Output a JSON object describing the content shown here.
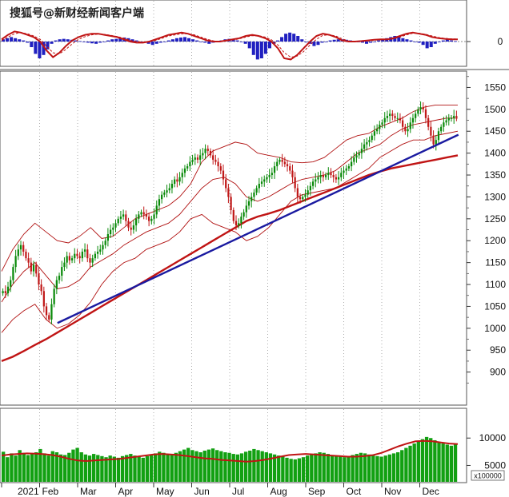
{
  "watermark": "搜狐号@新财经新闻客户端",
  "colors": {
    "up": "#0a8a0a",
    "down": "#c01818",
    "band": "#b01010",
    "ma": "#c01414",
    "trendline": "#1a1aa0",
    "macd_pos": "#2020c0",
    "macd_neg": "#2020c0",
    "volume": "#12a012",
    "volume_ma": "#c01414",
    "grid": "#888888"
  },
  "chart_data": [
    {
      "type": "histogram",
      "panel": "indicator",
      "ylim": [
        -1,
        1
      ],
      "ticks": [
        "0"
      ],
      "series": [
        {
          "values": [
            0.1,
            0.15,
            0.2,
            0.15,
            0.1,
            0.05,
            -0.05,
            -0.25,
            -0.55,
            -0.75,
            -0.6,
            -0.35,
            -0.1,
            0.05,
            0.1,
            0.12,
            0.1,
            0.08,
            0.05,
            0.02,
            -0.02,
            -0.05,
            -0.08,
            -0.1,
            -0.05,
            0.0,
            0.05,
            0.1,
            0.12,
            0.15,
            0.18,
            0.15,
            0.1,
            0.05,
            0.0,
            -0.05,
            -0.1,
            -0.15,
            -0.1,
            -0.05,
            0.0,
            0.05,
            0.1,
            0.15,
            0.18,
            0.2,
            0.15,
            0.1,
            0.05,
            0.0,
            -0.05,
            -0.1,
            -0.05,
            0.0,
            0.05,
            0.1,
            0.12,
            0.1,
            0.05,
            0.0,
            -0.1,
            -0.3,
            -0.6,
            -0.8,
            -0.75,
            -0.55,
            -0.3,
            -0.1,
            0.05,
            0.2,
            0.35,
            0.4,
            0.35,
            0.25,
            0.1,
            0.0,
            -0.1,
            -0.2,
            -0.15,
            -0.05,
            0.0,
            0.05,
            0.08,
            0.1,
            0.1,
            0.08,
            0.05,
            0.02,
            0.0,
            -0.05,
            -0.1,
            -0.05,
            0.0,
            0.05,
            0.1,
            0.15,
            0.2,
            0.25,
            0.2,
            0.15,
            0.1,
            0.05,
            0.0,
            -0.05,
            -0.15,
            -0.3,
            -0.25,
            -0.1,
            0.0,
            0.05,
            0.1,
            0.05,
            0.02
          ]
        }
      ],
      "lines": [
        {
          "name": "",
          "values": [
            0.1,
            0.3,
            0.45,
            0.4,
            0.3,
            0.2,
            0.0,
            -0.4,
            -0.7,
            -0.5,
            -0.2,
            0.05,
            0.2,
            0.3,
            0.35,
            0.35,
            0.3,
            0.25,
            0.2,
            0.1,
            0.0,
            -0.05,
            -0.05,
            0.0,
            0.1,
            0.2,
            0.3,
            0.35,
            0.4,
            0.35,
            0.25,
            0.15,
            0.05,
            0.0,
            0.0,
            0.05,
            0.1,
            0.15,
            0.25,
            0.3,
            0.25,
            0.15,
            0.0,
            -0.3,
            -0.75,
            -0.8,
            -0.6,
            -0.3,
            0.0,
            0.25,
            0.35,
            0.3,
            0.2,
            0.05,
            0.0,
            0.0,
            0.02,
            0.05,
            0.08,
            0.1,
            0.1,
            0.15,
            0.25,
            0.35,
            0.4,
            0.35,
            0.3,
            0.2,
            0.15,
            0.12,
            0.1,
            0.1
          ]
        },
        {
          "name": "",
          "values": [
            0.05,
            0.2,
            0.35,
            0.4,
            0.35,
            0.25,
            0.1,
            -0.2,
            -0.5,
            -0.55,
            -0.35,
            -0.1,
            0.1,
            0.22,
            0.3,
            0.33,
            0.32,
            0.28,
            0.22,
            0.15,
            0.05,
            0.0,
            -0.02,
            0.0,
            0.05,
            0.15,
            0.25,
            0.3,
            0.35,
            0.35,
            0.3,
            0.2,
            0.1,
            0.03,
            0.0,
            0.02,
            0.07,
            0.12,
            0.2,
            0.26,
            0.26,
            0.2,
            0.08,
            -0.15,
            -0.5,
            -0.7,
            -0.65,
            -0.45,
            -0.15,
            0.1,
            0.28,
            0.3,
            0.25,
            0.12,
            0.03,
            0.0,
            0.01,
            0.03,
            0.06,
            0.08,
            0.09,
            0.12,
            0.2,
            0.3,
            0.37,
            0.37,
            0.32,
            0.25,
            0.18,
            0.14,
            0.12,
            0.11
          ]
        }
      ]
    },
    {
      "type": "candlestick",
      "panel": "price",
      "ylim": [
        830,
        1580
      ],
      "ticks": [
        900,
        950,
        1000,
        1050,
        1100,
        1150,
        1200,
        1250,
        1300,
        1350,
        1400,
        1450,
        1500,
        1550
      ],
      "x": [
        "2021",
        "Feb",
        "Mar",
        "Apr",
        "May",
        "Jun",
        "Jul",
        "Aug",
        "Sep",
        "Oct",
        "Nov",
        "Dec"
      ],
      "closes": [
        1085,
        1080,
        1095,
        1110,
        1140,
        1165,
        1180,
        1190,
        1175,
        1160,
        1150,
        1130,
        1145,
        1125,
        1100,
        1085,
        1050,
        1030,
        1020,
        1055,
        1090,
        1110,
        1120,
        1140,
        1150,
        1165,
        1155,
        1160,
        1170,
        1165,
        1160,
        1175,
        1180,
        1160,
        1150,
        1160,
        1170,
        1175,
        1180,
        1190,
        1200,
        1215,
        1225,
        1230,
        1240,
        1250,
        1255,
        1260,
        1245,
        1230,
        1225,
        1235,
        1250,
        1260,
        1265,
        1260,
        1255,
        1245,
        1250,
        1260,
        1280,
        1295,
        1305,
        1310,
        1315,
        1320,
        1330,
        1340,
        1335,
        1345,
        1355,
        1365,
        1370,
        1380,
        1385,
        1390,
        1385,
        1395,
        1400,
        1410,
        1405,
        1395,
        1385,
        1380,
        1370,
        1360,
        1340,
        1320,
        1300,
        1270,
        1245,
        1235,
        1240,
        1255,
        1265,
        1280,
        1290,
        1300,
        1310,
        1320,
        1330,
        1335,
        1340,
        1345,
        1350,
        1355,
        1370,
        1380,
        1385,
        1380,
        1375,
        1370,
        1360,
        1345,
        1320,
        1300,
        1295,
        1300,
        1305,
        1315,
        1325,
        1335,
        1340,
        1345,
        1350,
        1345,
        1350,
        1355,
        1350,
        1345,
        1340,
        1345,
        1355,
        1360,
        1365,
        1370,
        1380,
        1390,
        1395,
        1400,
        1410,
        1420,
        1425,
        1430,
        1440,
        1450,
        1455,
        1465,
        1470,
        1480,
        1485,
        1490,
        1485,
        1480,
        1480,
        1475,
        1460,
        1450,
        1455,
        1470,
        1480,
        1490,
        1500,
        1505,
        1500,
        1480,
        1460,
        1440,
        1420,
        1430,
        1450,
        1460,
        1470,
        1475,
        1480,
        1480,
        1485,
        1482
      ],
      "bands": {
        "upper": [
          1130,
          1180,
          1215,
          1240,
          1220,
          1200,
          1195,
          1210,
          1230,
          1205,
          1210,
          1230,
          1250,
          1260,
          1270,
          1280,
          1300,
          1330,
          1380,
          1405,
          1415,
          1425,
          1420,
          1400,
          1395,
          1390,
          1380,
          1378,
          1380,
          1390,
          1410,
          1430,
          1440,
          1445,
          1460,
          1470,
          1480,
          1495,
          1505,
          1510,
          1510,
          1510
        ],
        "middle": [
          1060,
          1100,
          1130,
          1150,
          1120,
          1090,
          1095,
          1110,
          1140,
          1155,
          1170,
          1190,
          1205,
          1220,
          1230,
          1240,
          1260,
          1290,
          1320,
          1340,
          1345,
          1330,
          1300,
          1290,
          1300,
          1315,
          1330,
          1340,
          1345,
          1350,
          1360,
          1380,
          1400,
          1410,
          1420,
          1440,
          1455,
          1465,
          1470,
          1475,
          1480,
          1480
        ],
        "lower": [
          990,
          1020,
          1040,
          1055,
          1020,
          1000,
          1010,
          1030,
          1060,
          1100,
          1130,
          1150,
          1160,
          1180,
          1190,
          1200,
          1220,
          1250,
          1260,
          1240,
          1230,
          1220,
          1200,
          1210,
          1230,
          1260,
          1290,
          1305,
          1310,
          1315,
          1320,
          1335,
          1350,
          1365,
          1390,
          1405,
          1420,
          1430,
          1430,
          1440,
          1445,
          1450
        ]
      },
      "moving_average": [
        925,
        935,
        948,
        962,
        975,
        990,
        1005,
        1020,
        1035,
        1050,
        1065,
        1080,
        1095,
        1110,
        1125,
        1140,
        1155,
        1170,
        1185,
        1200,
        1215,
        1230,
        1245,
        1255,
        1262,
        1270,
        1280,
        1290,
        1300,
        1310,
        1320,
        1330,
        1340,
        1350,
        1358,
        1365,
        1370,
        1375,
        1380,
        1385,
        1390,
        1395
      ],
      "trendline": [
        [
          0.04,
          1012
        ],
        [
          0.975,
          1442
        ]
      ]
    },
    {
      "type": "bar",
      "panel": "volume",
      "ylim": [
        2000,
        15000
      ],
      "ticks": [
        5000,
        10000
      ],
      "unit_label": "x100000",
      "values": [
        7500,
        6500,
        7200,
        6800,
        7800,
        7300,
        6900,
        7100,
        7400,
        8000,
        7200,
        6800,
        7600,
        7400,
        7000,
        6900,
        7300,
        7900,
        8200,
        7400,
        7000,
        6800,
        7100,
        6900,
        6700,
        6500,
        6800,
        6600,
        6400,
        6700,
        6900,
        7100,
        6800,
        6600,
        6400,
        6700,
        7000,
        7200,
        7500,
        7300,
        7100,
        6900,
        7300,
        7600,
        7900,
        8200,
        7800,
        7600,
        7400,
        7700,
        7900,
        8100,
        7800,
        7600,
        7400,
        7300,
        7100,
        7000,
        7200,
        7500,
        7700,
        8000,
        7800,
        7600,
        7400,
        7200,
        7000,
        6800,
        6600,
        6400,
        6200,
        6100,
        6300,
        6500,
        6800,
        7000,
        7200,
        7400,
        7300,
        7100,
        6900,
        6700,
        6600,
        6500,
        6700,
        6900,
        7100,
        7300,
        7200,
        7000,
        6800,
        6700,
        6600,
        6800,
        7000,
        7200,
        7400,
        7800,
        8200,
        8600,
        9000,
        9400,
        9800,
        10200,
        10000,
        9600,
        9300,
        9000,
        8800,
        8600,
        8900
      ],
      "moving_average": [
        6800,
        7000,
        7100,
        7200,
        7150,
        7050,
        6900,
        6600,
        6200,
        5900,
        5800,
        5900,
        6000,
        6100,
        6200,
        6400,
        6600,
        6800,
        7000,
        7100,
        7000,
        6900,
        6700,
        6500,
        6300,
        6200,
        6000,
        5900,
        5800,
        5700,
        5800,
        6000,
        6300,
        6600,
        6900,
        7000,
        7100,
        7000,
        6900,
        6800,
        6700,
        6600,
        6600,
        6700,
        6900,
        7300,
        7900,
        8500,
        9000,
        9400,
        9500,
        9400,
        9200,
        9000,
        8900
      ]
    }
  ]
}
